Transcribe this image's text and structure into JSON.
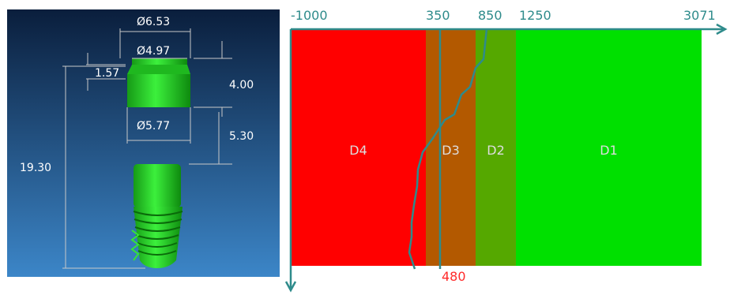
{
  "implant_view": {
    "dimensions": {
      "collar_diameter": "Ø6.53",
      "cap_top_diameter": "Ø4.97",
      "cap_height": "1.57",
      "collar_height": "4.00",
      "cap_bottom_diameter": "Ø5.77",
      "gap": "5.30",
      "total_length": "19.30"
    }
  },
  "density_chart": {
    "axis_ticks": [
      "-1000",
      "350",
      "850",
      "1250",
      "3071"
    ],
    "marker_label": "480",
    "zones": [
      {
        "label": "D4",
        "from": -1000,
        "to": 350,
        "color": "#ff0000"
      },
      {
        "label": "D3",
        "from": 350,
        "to": 850,
        "color": "#b35900"
      },
      {
        "label": "D2",
        "from": 850,
        "to": 1250,
        "color": "#55a800"
      },
      {
        "label": "D1",
        "from": 1250,
        "to": 3071,
        "color": "#00e000"
      }
    ],
    "colors": {
      "axis": "#2e8b8b",
      "marker_label": "#ff2a2a",
      "zone_label": "#dddddd"
    }
  }
}
